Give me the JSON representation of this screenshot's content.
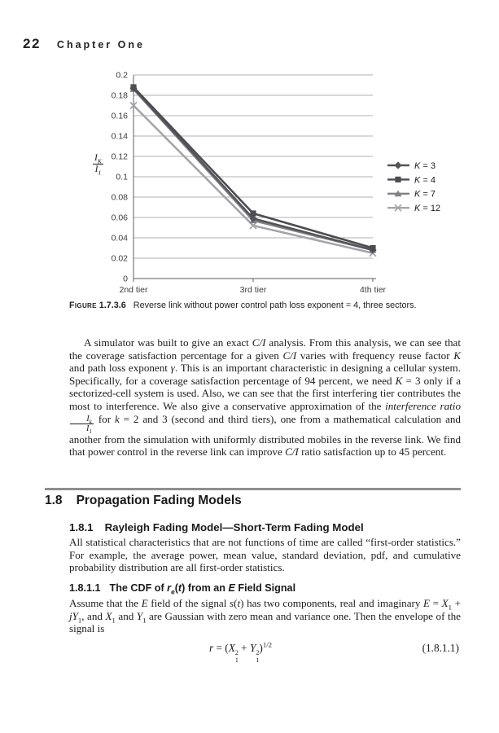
{
  "page": {
    "number": "22",
    "chapter": "Chapter One"
  },
  "figure": {
    "caption_label": "Figure",
    "caption_number": "1.7.3.6",
    "caption_text": "Reverse link without power control path loss exponent = 4, three sectors."
  },
  "chart_data": {
    "type": "line",
    "categories": [
      "2nd tier",
      "3rd tier",
      "4th tier"
    ],
    "series": [
      {
        "name": "K = 3",
        "marker": "diamond",
        "color": "#54545a",
        "values": [
          0.187,
          0.059,
          0.028
        ]
      },
      {
        "name": "K = 4",
        "marker": "square",
        "color": "#4c4c52",
        "values": [
          0.188,
          0.064,
          0.03
        ]
      },
      {
        "name": "K = 7",
        "marker": "triangle",
        "color": "#808086",
        "values": [
          0.186,
          0.057,
          0.028
        ]
      },
      {
        "name": "K = 12",
        "marker": "x",
        "color": "#a4a4a9",
        "values": [
          0.17,
          0.052,
          0.025
        ]
      }
    ],
    "ylabel": {
      "num_base": "I",
      "num_sub": "K",
      "den_base": "I",
      "den_sub": "1"
    },
    "ylim": [
      0,
      0.2
    ],
    "ytick_step": 0.02,
    "yticks": [
      "0.2",
      "0.18",
      "0.16",
      "0.14",
      "0.12",
      "0.1",
      "0.08",
      "0.06",
      "0.04",
      "0.02",
      "0"
    ],
    "grid": true,
    "legend_position": "right",
    "gridline_color": "#b1b1b1",
    "axis_color": "#7a7a7a"
  },
  "paragraph1": {
    "runs": [
      {
        "t": "A simulator was built to give an exact "
      },
      {
        "t": "C/I",
        "i": true
      },
      {
        "t": " analysis. From this analysis, we can see that the coverage satisfaction percentage for a given "
      },
      {
        "t": "C/I",
        "i": true
      },
      {
        "t": " varies with frequency reuse factor "
      },
      {
        "t": "K",
        "i": true
      },
      {
        "t": " and path loss exponent "
      },
      {
        "t": "γ",
        "i": true
      },
      {
        "t": ". This is an important characteristic in designing a cellular system. Specifically, for a coverage satisfaction percentage of 94 percent, we need "
      },
      {
        "t": "K",
        "i": true
      },
      {
        "t": " = 3 only if a sectorized-cell system is used. Also, we can see that the first interfering tier contributes the most to interference. We also give a conservative approximation of the "
      },
      {
        "t": "interference ratio",
        "i": true
      },
      {
        "t": " "
      },
      {
        "frac": {
          "num_base": "I",
          "num_sub": "k",
          "den_base": "I",
          "den_sub": "1"
        }
      },
      {
        "t": " for "
      },
      {
        "t": "k",
        "i": true
      },
      {
        "t": " = 2 and 3 (second and third tiers), one from a mathematical calculation and another from the simulation with uniformly distributed mobiles in the reverse link. We find that power control in the reverse link can improve "
      },
      {
        "t": "C/I",
        "i": true
      },
      {
        "t": " ratio satisfaction up to 45 percent."
      }
    ]
  },
  "section_18": {
    "number": "1.8",
    "title": "Propagation Fading Models"
  },
  "section_181": {
    "number": "1.8.1",
    "title": "Rayleigh Fading Model—Short-Term Fading Model"
  },
  "paragraph2": {
    "runs": [
      {
        "t": "All statistical characteristics that are not functions of time are called “first-order statistics.” For example, the average power, mean value, standard deviation, pdf, and cumulative probability distribution are all first-order statistics."
      }
    ]
  },
  "section_1811": {
    "number": "1.8.1.1",
    "title_runs": [
      {
        "t": "The CDF of "
      },
      {
        "t": "r",
        "i": true
      },
      {
        "t": "e",
        "sub": true,
        "i": true
      },
      {
        "t": "("
      },
      {
        "t": "t",
        "i": true
      },
      {
        "t": ") from an "
      },
      {
        "t": "E",
        "i": true
      },
      {
        "t": " Field Signal"
      }
    ]
  },
  "paragraph3": {
    "runs": [
      {
        "t": "Assume that the "
      },
      {
        "t": "E",
        "i": true
      },
      {
        "t": " field of the signal "
      },
      {
        "t": "s",
        "i": true
      },
      {
        "t": "("
      },
      {
        "t": "t",
        "i": true
      },
      {
        "t": ") has two components, real and imaginary "
      },
      {
        "t": "E",
        "i": true
      },
      {
        "t": " = "
      },
      {
        "t": "X",
        "i": true
      },
      {
        "t": "1",
        "sub": true
      },
      {
        "t": " + "
      },
      {
        "t": "jY",
        "i": true
      },
      {
        "t": "1",
        "sub": true
      },
      {
        "t": ", and "
      },
      {
        "t": "X",
        "i": true
      },
      {
        "t": "1",
        "sub": true
      },
      {
        "t": " and "
      },
      {
        "t": "Y",
        "i": true
      },
      {
        "t": "1",
        "sub": true
      },
      {
        "t": " are Gaussian with zero mean and variance one. Then the envelope of the signal is"
      }
    ]
  },
  "equation": {
    "runs": [
      {
        "t": "r",
        "i": true
      },
      {
        "t": " = ("
      },
      {
        "t": "X",
        "i": true
      },
      {
        "supsub": {
          "sup": "2",
          "sub": "1"
        }
      },
      {
        "t": " + "
      },
      {
        "t": "Y",
        "i": true
      },
      {
        "supsub": {
          "sup": "2",
          "sub": "1"
        }
      },
      {
        "t": ")"
      },
      {
        "t": "1/2",
        "sup": true
      }
    ],
    "number": "(1.8.1.1)"
  }
}
